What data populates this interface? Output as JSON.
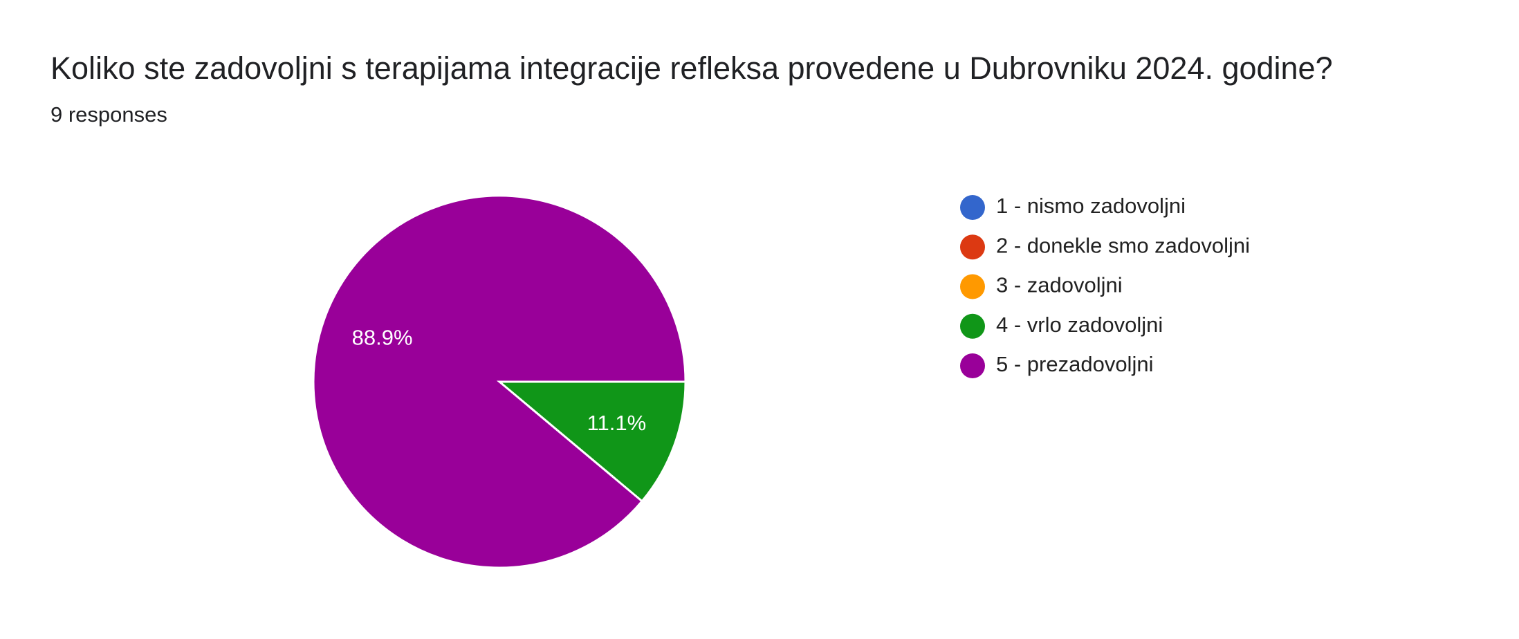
{
  "chart_data": {
    "type": "pie",
    "title": "Koliko ste zadovoljni s terapijama integracije refleksa provedene u Dubrovniku 2024. godine?",
    "subtitle": "9 responses",
    "categories": [
      "1 - nismo zadovoljni",
      "2 - donekle smo zadovoljni",
      "3 - zadovoljni",
      "4 - vrlo zadovoljni",
      "5 - prezadovoljni"
    ],
    "values": [
      0,
      0,
      0,
      11.1,
      88.9
    ],
    "value_labels": [
      null,
      null,
      null,
      "11.1%",
      "88.9%"
    ],
    "colors": [
      "#3366cc",
      "#dc3912",
      "#ff9900",
      "#109618",
      "#990099"
    ],
    "legend": "right"
  }
}
